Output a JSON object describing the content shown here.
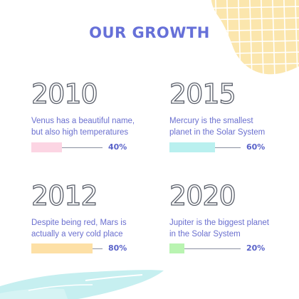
{
  "title": "OUR GROWTH",
  "milestones": [
    {
      "year": "2010",
      "description": "Venus has a beautiful name, but also high temperatures",
      "percent_label": "40%",
      "progress": 0.4,
      "color": "#fcd5e3"
    },
    {
      "year": "2015",
      "description": "Mercury is the smallest planet in the Solar System",
      "percent_label": "60%",
      "progress": 0.6,
      "color": "#b9f0ef"
    },
    {
      "year": "2012",
      "description": "Despite being red, Mars is actually a very cold place",
      "percent_label": "80%",
      "progress": 0.8,
      "color": "#fde0a6"
    },
    {
      "year": "2020",
      "description": "Jupiter is the biggest planet in the Solar System",
      "percent_label": "20%",
      "progress": 0.2,
      "color": "#b9f4b1"
    }
  ],
  "colors": {
    "accent": "#6670d8",
    "grid_shape": "#fbe6ad",
    "wave_shape": "#c6eff0"
  }
}
